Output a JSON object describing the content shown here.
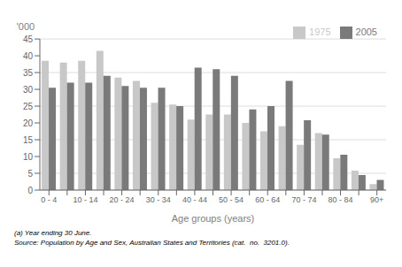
{
  "chart_data": {
    "type": "bar",
    "ylabel": "'000",
    "xlabel": "Age groups (years)",
    "categories": [
      "0 - 4",
      null,
      "10 - 14",
      null,
      "20 - 24",
      null,
      "30 - 34",
      null,
      "40 - 44",
      null,
      "50 - 54",
      null,
      "60 - 64",
      null,
      "70 - 74",
      null,
      "80 - 84",
      null,
      "90+"
    ],
    "series": [
      {
        "name": "1975",
        "color": "#c8c8c8",
        "values": [
          38.5,
          38.0,
          38.5,
          41.5,
          33.5,
          32.5,
          26.0,
          25.5,
          21.0,
          22.5,
          22.5,
          20.0,
          17.5,
          19.0,
          13.5,
          17.0,
          9.5,
          5.8,
          1.8
        ]
      },
      {
        "name": "2005",
        "color": "#7a7a7a",
        "values": [
          30.5,
          32.0,
          32.0,
          34.0,
          31.0,
          30.5,
          30.5,
          25.0,
          36.5,
          36.0,
          34.0,
          24.0,
          25.0,
          32.5,
          20.8,
          16.5,
          10.5,
          4.5,
          3.0
        ]
      }
    ],
    "ylim": [
      0,
      45
    ],
    "yticks": [
      0,
      5,
      10,
      15,
      20,
      25,
      30,
      35,
      40,
      45
    ],
    "grid": true,
    "legend": "upper right",
    "annotations": [
      "(a) Year ending 30 June.",
      "Source: Population by Age and Sex, Australian States and Territories (cat.  no.  3201.0)."
    ]
  }
}
